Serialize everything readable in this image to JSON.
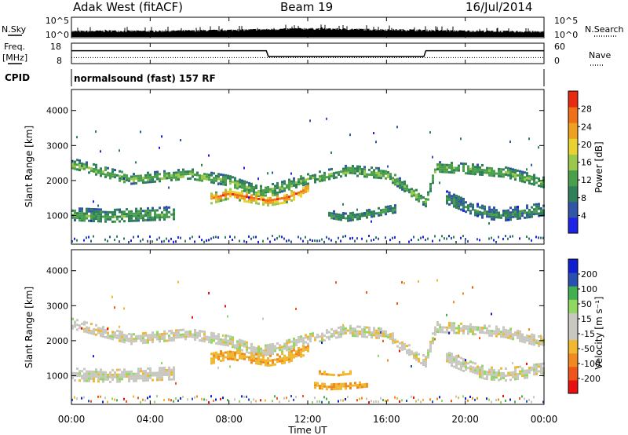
{
  "header": {
    "station": "Adak West (fitACF)",
    "beam": "Beam 19",
    "date": "16/Jul/2014"
  },
  "labels": {
    "nsky": "N.Sky",
    "nsearch": "N.Search",
    "freq": "Freq.",
    "freq_unit": "[MHz]",
    "nave": "Nave",
    "cpid": "CPID",
    "cpid_value": "normalsound (fast) 157 RF",
    "noise_ticks_left": [
      "10^5",
      "10^0"
    ],
    "noise_ticks_right": [
      "10^5",
      "10^0"
    ],
    "freq_ticks_left": [
      "18",
      "8"
    ],
    "nave_ticks_right": [
      "60",
      "0"
    ]
  },
  "colors": {
    "power": [
      "#1e22e6",
      "#3255a8",
      "#2f7f5a",
      "#4a9f4a",
      "#9ac84a",
      "#e8d230",
      "#f0a020",
      "#f07018",
      "#e82a10"
    ],
    "velocity": [
      "#e81010",
      "#f05418",
      "#f08a20",
      "#f0b830",
      "#c8c8c0",
      "#c8c8c0",
      "#90d860",
      "#40b050",
      "#2850b0",
      "#1020d0"
    ]
  },
  "chart_data": [
    {
      "type": "line",
      "name": "noise",
      "ylabel": "N.Sky",
      "y2label": "N.Search",
      "scale": "log",
      "ylim": [
        1,
        100000
      ],
      "xlim": [
        0,
        24
      ],
      "x_ticks": [
        "00:00",
        "04:00",
        "08:00",
        "12:00",
        "16:00",
        "20:00",
        "00:00"
      ],
      "series": [
        {
          "x": [
            0,
            2,
            4,
            6,
            8,
            10,
            12,
            14,
            16,
            18,
            20,
            22,
            24
          ],
          "values": [
            30,
            40,
            35,
            45,
            60,
            90,
            150,
            110,
            80,
            60,
            40,
            30,
            25
          ]
        }
      ]
    },
    {
      "type": "line",
      "name": "frequency",
      "ylabel": "Freq. [MHz]",
      "y2label": "Nave",
      "ylim": [
        8,
        18
      ],
      "y2lim": [
        0,
        60
      ],
      "xlim": [
        0,
        24
      ],
      "series": [
        {
          "x": [
            0,
            9.9,
            10.0,
            17.9,
            18.0,
            24
          ],
          "values": [
            14.3,
            14.3,
            11.5,
            11.5,
            14.3,
            14.3
          ]
        },
        {
          "x": [
            0,
            24
          ],
          "values": [
            10.9,
            10.9
          ]
        }
      ]
    },
    {
      "type": "heatmap",
      "name": "power",
      "xlabel": "",
      "ylabel": "Slant Range [km]",
      "colorbar_label": "Power [dB]",
      "colorbar_ticks": [
        "4",
        "8",
        "12",
        "16",
        "20",
        "24",
        "28"
      ],
      "xlim": [
        0,
        24
      ],
      "ylim": [
        180,
        4600
      ],
      "y_ticks": [
        "1000",
        "2000",
        "3000",
        "4000"
      ],
      "bands": [
        {
          "x": [
            0,
            3,
            6,
            8,
            9.5,
            10.5,
            12,
            14,
            16,
            17,
            18,
            18.5,
            20,
            22,
            24
          ],
          "center": [
            2500,
            2050,
            2200,
            2000,
            1700,
            1800,
            2050,
            2300,
            2200,
            1800,
            1400,
            2400,
            2350,
            2250,
            1950
          ],
          "width": 320,
          "power": 14
        },
        {
          "x": [
            0,
            2,
            4,
            5.3
          ],
          "center": [
            1050,
            1000,
            1050,
            1080
          ],
          "width": 380,
          "power": 13
        },
        {
          "x": [
            7,
            8,
            9,
            10,
            11,
            12
          ],
          "center": [
            1500,
            1650,
            1550,
            1450,
            1550,
            1800
          ],
          "width": 280,
          "power": 27
        },
        {
          "x": [
            13,
            14,
            15,
            16.5
          ],
          "center": [
            1050,
            950,
            1050,
            1200
          ],
          "width": 260,
          "power": 11
        },
        {
          "x": [
            19,
            20,
            21,
            22,
            24
          ],
          "center": [
            1550,
            1300,
            1100,
            1050,
            1200
          ],
          "width": 360,
          "power": 10
        }
      ]
    },
    {
      "type": "heatmap",
      "name": "velocity",
      "xlabel": "Time UT",
      "ylabel": "Slant Range [km]",
      "colorbar_label": "Velocity [m s⁻¹]",
      "colorbar_ticks": [
        "200",
        "100",
        "50",
        "15",
        "-15",
        "-50",
        "-100",
        "-200"
      ],
      "xlim": [
        0,
        24
      ],
      "ylim": [
        180,
        4600
      ],
      "y_ticks": [
        "1000",
        "2000",
        "3000",
        "4000"
      ],
      "bands": [
        {
          "x": [
            0,
            3,
            6,
            8,
            9.5,
            10.5,
            12,
            14,
            16,
            17,
            18,
            18.5,
            20,
            22,
            24
          ],
          "center": [
            2500,
            2050,
            2200,
            2000,
            1700,
            1800,
            2050,
            2300,
            2200,
            1800,
            1400,
            2400,
            2350,
            2250,
            1950
          ],
          "width": 320,
          "velocity": 0
        },
        {
          "x": [
            0,
            2,
            4,
            5.3
          ],
          "center": [
            1050,
            1000,
            1050,
            1080
          ],
          "width": 380,
          "velocity": 0
        },
        {
          "x": [
            7,
            8,
            9,
            10,
            11,
            12
          ],
          "center": [
            1500,
            1650,
            1550,
            1450,
            1550,
            1800
          ],
          "width": 280,
          "velocity": -40
        },
        {
          "x": [
            12.3,
            13,
            14,
            15
          ],
          "center": [
            750,
            700,
            720,
            780
          ],
          "width": 160,
          "velocity": -45
        },
        {
          "x": [
            12.5,
            13.5,
            14.2
          ],
          "center": [
            1100,
            1050,
            1100
          ],
          "width": 120,
          "velocity": -40
        },
        {
          "x": [
            19,
            20,
            21,
            22,
            24
          ],
          "center": [
            1550,
            1300,
            1100,
            1050,
            1200
          ],
          "width": 360,
          "velocity": 0
        }
      ]
    }
  ]
}
